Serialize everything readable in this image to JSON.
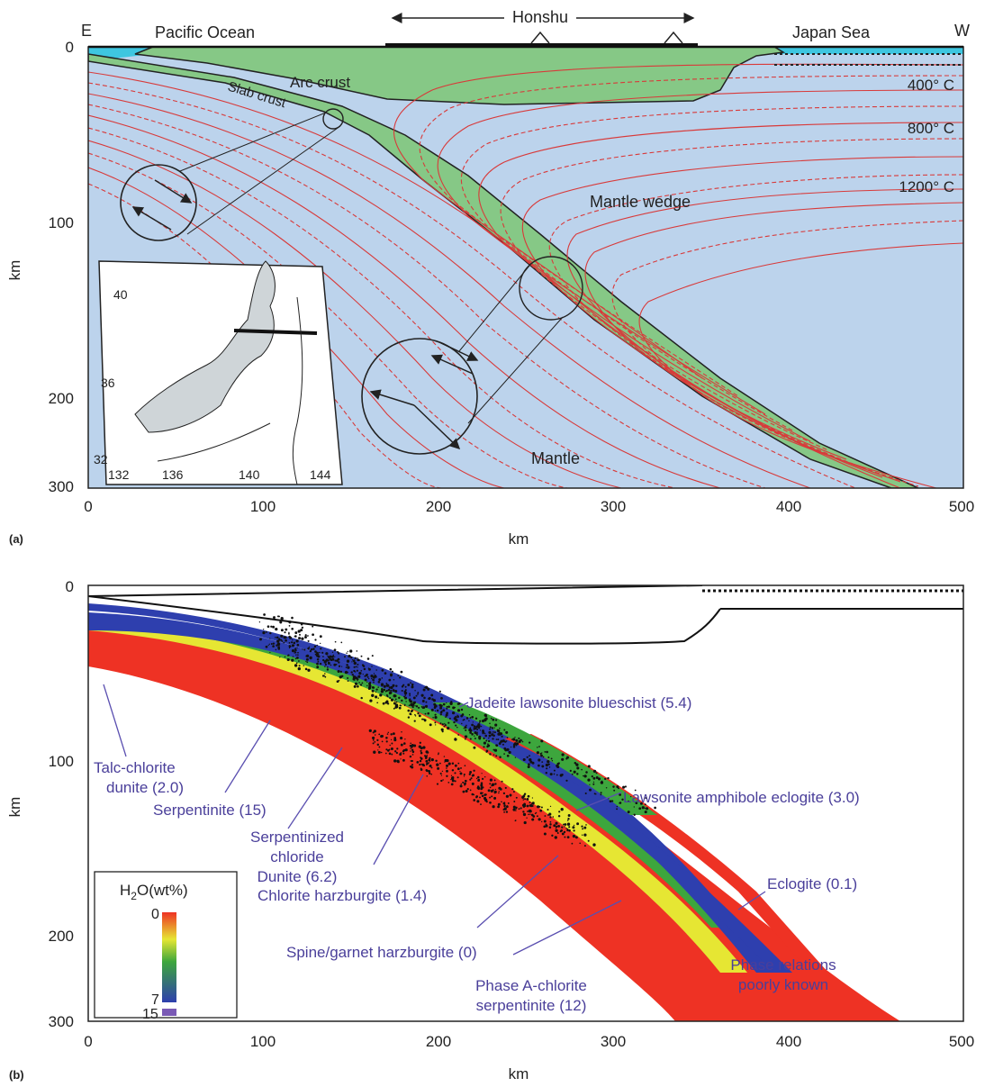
{
  "panel_a": {
    "tag": "(a)",
    "x_axis": {
      "label": "km",
      "ticks": [
        "0",
        "100",
        "200",
        "300",
        "400",
        "500"
      ],
      "range": [
        0,
        500
      ]
    },
    "y_axis": {
      "label": "km",
      "ticks": [
        "0",
        "100",
        "200",
        "300"
      ],
      "range": [
        0,
        300
      ]
    },
    "labels": {
      "east": "E",
      "west": "W",
      "pacific": "Pacific Ocean",
      "japan_sea": "Japan Sea",
      "honshu": "Honshu",
      "arc_crust": "Arc crust",
      "slab_crust": "Slab crust",
      "mantle_wedge": "Mantle wedge",
      "mantle": "Mantle"
    },
    "isotherms": [
      "400° C",
      "800° C",
      "1200° C"
    ],
    "inset": {
      "lat_ticks": [
        "40",
        "36",
        "32"
      ],
      "lon_ticks": [
        "132",
        "136",
        "140",
        "144"
      ]
    },
    "colors": {
      "ocean": "#3ec6e0",
      "mantle": "#bcd3ec",
      "crust": "#86c886",
      "isotherm": "#d83a3a"
    }
  },
  "panel_b": {
    "tag": "(b)",
    "x_axis": {
      "label": "km",
      "ticks": [
        "0",
        "100",
        "200",
        "300",
        "400",
        "500"
      ],
      "range": [
        0,
        500
      ]
    },
    "y_axis": {
      "label": "km",
      "ticks": [
        "0",
        "100",
        "200",
        "300"
      ],
      "range": [
        0,
        300
      ]
    },
    "facies": [
      {
        "name": "talc",
        "text": [
          "Talc-chlorite",
          "dunite (2.0)"
        ]
      },
      {
        "name": "serpentinite",
        "text": [
          "Serpentinite (15)"
        ]
      },
      {
        "name": "serp-chloride",
        "text": [
          "Serpentinized",
          "chloride",
          "Dunite (6.2)"
        ]
      },
      {
        "name": "chlorite-harz",
        "text": [
          "Chlorite harzburgite (1.4)"
        ]
      },
      {
        "name": "spinel",
        "text": [
          "Spine/garnet harzburgite (0)"
        ]
      },
      {
        "name": "phaseA",
        "text": [
          "Phase A-chlorite",
          "serpentinite (12)"
        ]
      },
      {
        "name": "jadeite",
        "text": [
          "Jadeite lawsonite blueschist (5.4)"
        ]
      },
      {
        "name": "lawsonite",
        "text": [
          "Lawsonite amphibole eclogite (3.0)"
        ]
      },
      {
        "name": "eclogite",
        "text": [
          "Eclogite (0.1)"
        ]
      },
      {
        "name": "poorly",
        "text": [
          "Phase relations",
          "poorly known"
        ]
      }
    ],
    "legend": {
      "title_h": "H",
      "title_2": "2",
      "title_rest": "O(wt%)",
      "ticks": [
        "0",
        "7",
        "15"
      ]
    },
    "colors": {
      "label": "#4a3f9a",
      "red": "#ee3224",
      "yellow": "#e6e633",
      "green": "#3da63d",
      "blue": "#2e3fae",
      "white": "#ffffff"
    }
  }
}
